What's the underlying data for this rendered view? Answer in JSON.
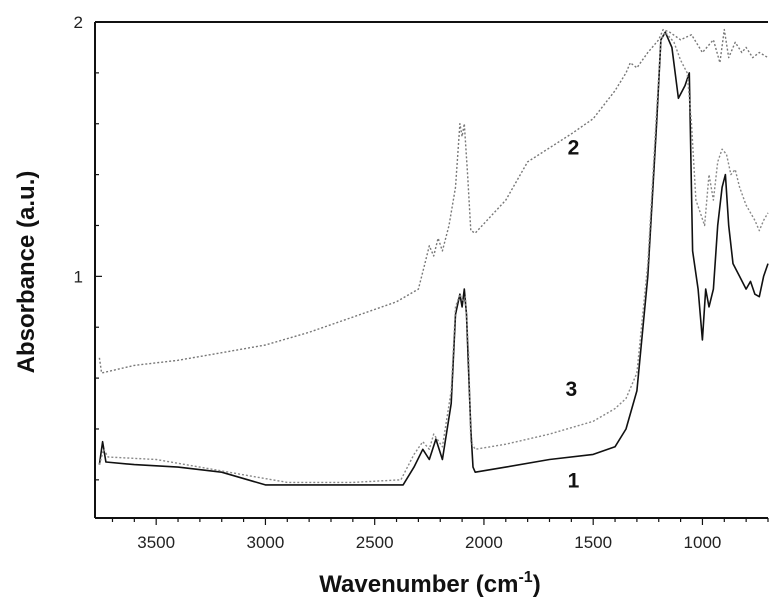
{
  "chart_data": {
    "type": "line",
    "title": "",
    "xlabel": "Wavenumber (cm",
    "xlabel_sup": "-1",
    "xlabel_tail": ")",
    "ylabel": "Absorbance (a.u.)",
    "xlim": [
      3780,
      700
    ],
    "x_reversed": true,
    "ylim": [
      0.05,
      2.0
    ],
    "x_ticks": [
      3500,
      3000,
      2500,
      2000,
      1500,
      1000
    ],
    "x_tick_labels": [
      "3500",
      "3000",
      "2500",
      "2000",
      "1500",
      "1000"
    ],
    "y_ticks": [
      1,
      2
    ],
    "y_tick_labels": [
      "1",
      "2"
    ],
    "grid": false,
    "legend": "inline labels",
    "series": [
      {
        "name": "1",
        "color": "#111111",
        "style": "solid",
        "points": [
          [
            3760,
            0.26
          ],
          [
            3745,
            0.35
          ],
          [
            3730,
            0.27
          ],
          [
            3600,
            0.26
          ],
          [
            3400,
            0.25
          ],
          [
            3200,
            0.23
          ],
          [
            3000,
            0.18
          ],
          [
            2800,
            0.18
          ],
          [
            2500,
            0.18
          ],
          [
            2370,
            0.18
          ],
          [
            2320,
            0.25
          ],
          [
            2280,
            0.32
          ],
          [
            2250,
            0.28
          ],
          [
            2220,
            0.36
          ],
          [
            2190,
            0.28
          ],
          [
            2150,
            0.5
          ],
          [
            2130,
            0.85
          ],
          [
            2110,
            0.93
          ],
          [
            2100,
            0.88
          ],
          [
            2090,
            0.95
          ],
          [
            2080,
            0.85
          ],
          [
            2060,
            0.4
          ],
          [
            2050,
            0.25
          ],
          [
            2040,
            0.23
          ],
          [
            1900,
            0.25
          ],
          [
            1700,
            0.28
          ],
          [
            1500,
            0.3
          ],
          [
            1400,
            0.33
          ],
          [
            1350,
            0.4
          ],
          [
            1300,
            0.55
          ],
          [
            1250,
            1.0
          ],
          [
            1210,
            1.6
          ],
          [
            1190,
            1.93
          ],
          [
            1170,
            1.96
          ],
          [
            1140,
            1.9
          ],
          [
            1110,
            1.7
          ],
          [
            1080,
            1.75
          ],
          [
            1060,
            1.8
          ],
          [
            1045,
            1.1
          ],
          [
            1020,
            0.95
          ],
          [
            1000,
            0.75
          ],
          [
            985,
            0.95
          ],
          [
            970,
            0.88
          ],
          [
            950,
            0.95
          ],
          [
            930,
            1.2
          ],
          [
            910,
            1.35
          ],
          [
            895,
            1.4
          ],
          [
            880,
            1.2
          ],
          [
            860,
            1.05
          ],
          [
            830,
            1.0
          ],
          [
            800,
            0.95
          ],
          [
            780,
            0.98
          ],
          [
            760,
            0.93
          ],
          [
            740,
            0.92
          ],
          [
            720,
            1.0
          ],
          [
            700,
            1.05
          ]
        ]
      },
      {
        "name": "2",
        "color": "#777777",
        "style": "dotted",
        "points": [
          [
            3760,
            0.68
          ],
          [
            3750,
            0.62
          ],
          [
            3600,
            0.65
          ],
          [
            3400,
            0.67
          ],
          [
            3200,
            0.7
          ],
          [
            3000,
            0.73
          ],
          [
            2800,
            0.78
          ],
          [
            2600,
            0.84
          ],
          [
            2400,
            0.9
          ],
          [
            2300,
            0.95
          ],
          [
            2270,
            1.05
          ],
          [
            2250,
            1.12
          ],
          [
            2230,
            1.08
          ],
          [
            2210,
            1.15
          ],
          [
            2190,
            1.1
          ],
          [
            2160,
            1.2
          ],
          [
            2130,
            1.35
          ],
          [
            2110,
            1.6
          ],
          [
            2100,
            1.55
          ],
          [
            2090,
            1.6
          ],
          [
            2075,
            1.4
          ],
          [
            2060,
            1.18
          ],
          [
            2040,
            1.17
          ],
          [
            1900,
            1.3
          ],
          [
            1800,
            1.45
          ],
          [
            1600,
            1.56
          ],
          [
            1500,
            1.62
          ],
          [
            1400,
            1.73
          ],
          [
            1350,
            1.8
          ],
          [
            1330,
            1.84
          ],
          [
            1300,
            1.82
          ],
          [
            1250,
            1.88
          ],
          [
            1200,
            1.93
          ],
          [
            1180,
            1.97
          ],
          [
            1150,
            1.96
          ],
          [
            1100,
            1.93
          ],
          [
            1050,
            1.95
          ],
          [
            1000,
            1.88
          ],
          [
            950,
            1.93
          ],
          [
            920,
            1.84
          ],
          [
            900,
            1.97
          ],
          [
            880,
            1.86
          ],
          [
            850,
            1.92
          ],
          [
            820,
            1.88
          ],
          [
            800,
            1.9
          ],
          [
            770,
            1.86
          ],
          [
            740,
            1.88
          ],
          [
            700,
            1.86
          ]
        ]
      },
      {
        "name": "3",
        "color": "#888888",
        "style": "dotted",
        "points": [
          [
            3760,
            0.26
          ],
          [
            3740,
            0.32
          ],
          [
            3720,
            0.29
          ],
          [
            3500,
            0.28
          ],
          [
            3300,
            0.25
          ],
          [
            3100,
            0.22
          ],
          [
            2900,
            0.19
          ],
          [
            2600,
            0.19
          ],
          [
            2380,
            0.2
          ],
          [
            2320,
            0.3
          ],
          [
            2280,
            0.35
          ],
          [
            2250,
            0.32
          ],
          [
            2230,
            0.38
          ],
          [
            2190,
            0.33
          ],
          [
            2150,
            0.55
          ],
          [
            2130,
            0.88
          ],
          [
            2110,
            0.93
          ],
          [
            2095,
            0.9
          ],
          [
            2085,
            0.92
          ],
          [
            2070,
            0.7
          ],
          [
            2060,
            0.35
          ],
          [
            2040,
            0.32
          ],
          [
            1900,
            0.34
          ],
          [
            1700,
            0.38
          ],
          [
            1500,
            0.43
          ],
          [
            1400,
            0.48
          ],
          [
            1350,
            0.52
          ],
          [
            1300,
            0.62
          ],
          [
            1250,
            1.05
          ],
          [
            1210,
            1.65
          ],
          [
            1190,
            1.93
          ],
          [
            1170,
            1.96
          ],
          [
            1130,
            1.92
          ],
          [
            1100,
            1.85
          ],
          [
            1070,
            1.8
          ],
          [
            1050,
            1.6
          ],
          [
            1030,
            1.3
          ],
          [
            1010,
            1.25
          ],
          [
            990,
            1.2
          ],
          [
            970,
            1.4
          ],
          [
            950,
            1.3
          ],
          [
            930,
            1.45
          ],
          [
            910,
            1.5
          ],
          [
            890,
            1.48
          ],
          [
            870,
            1.4
          ],
          [
            850,
            1.42
          ],
          [
            830,
            1.35
          ],
          [
            800,
            1.28
          ],
          [
            780,
            1.25
          ],
          [
            760,
            1.22
          ],
          [
            740,
            1.18
          ],
          [
            720,
            1.22
          ],
          [
            700,
            1.25
          ]
        ]
      }
    ],
    "series_labels": [
      {
        "text": "2",
        "x": 1590,
        "y": 1.48
      },
      {
        "text": "3",
        "x": 1600,
        "y": 0.53
      },
      {
        "text": "1",
        "x": 1590,
        "y": 0.17
      }
    ]
  }
}
